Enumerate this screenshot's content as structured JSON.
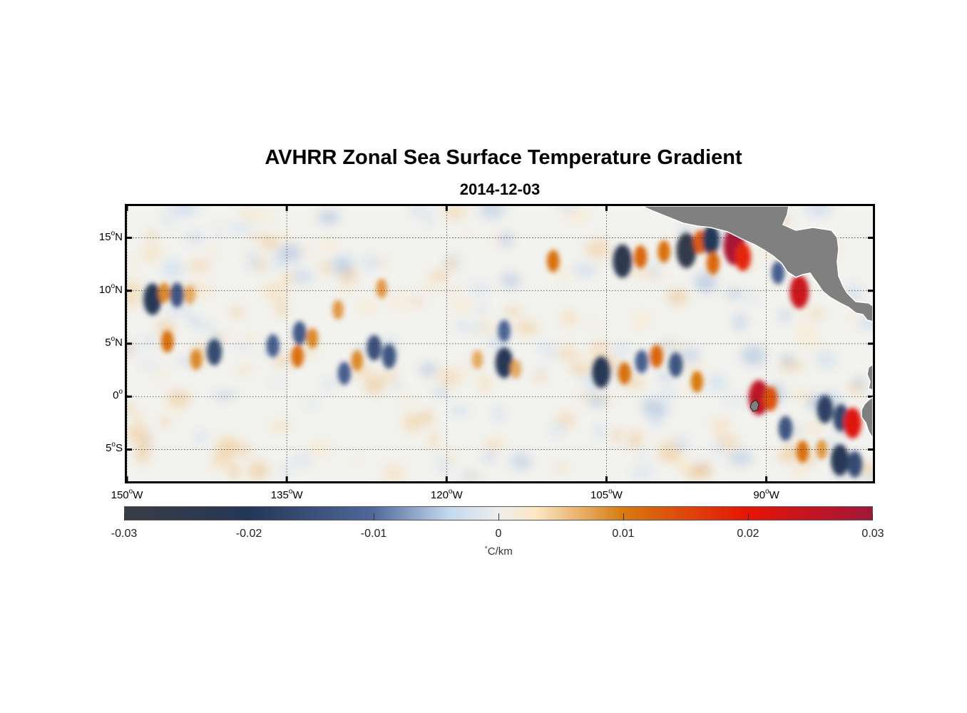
{
  "title": "AVHRR Zonal Sea Surface Temperature Gradient",
  "subtitle": "2014-12-03",
  "map": {
    "lon_range": [
      -150,
      -80
    ],
    "lat_range": [
      -8,
      18
    ],
    "land_color": "#808080",
    "ocean_base_color": "#eef0ee",
    "lat_ticks": [
      {
        "value": 15,
        "num": "15",
        "deg": "o",
        "hemi": "N"
      },
      {
        "value": 10,
        "num": "10",
        "deg": "o",
        "hemi": "N"
      },
      {
        "value": 5,
        "num": "5",
        "deg": "o",
        "hemi": "N"
      },
      {
        "value": 0,
        "num": "0",
        "deg": "o",
        "hemi": ""
      },
      {
        "value": -5,
        "num": "5",
        "deg": "o",
        "hemi": "S"
      }
    ],
    "lon_ticks": [
      {
        "value": -150,
        "num": "150",
        "deg": "o",
        "hemi": "W"
      },
      {
        "value": -135,
        "num": "135",
        "deg": "o",
        "hemi": "W"
      },
      {
        "value": -120,
        "num": "120",
        "deg": "o",
        "hemi": "W"
      },
      {
        "value": -105,
        "num": "105",
        "deg": "o",
        "hemi": "W"
      },
      {
        "value": -90,
        "num": "90",
        "deg": "o",
        "hemi": "W"
      }
    ],
    "features": [
      {
        "lon": -147.6,
        "lat": 9.2,
        "v": -0.022
      },
      {
        "lon": -146.5,
        "lat": 9.8,
        "v": 0.009
      },
      {
        "lon": -145.3,
        "lat": 9.6,
        "v": -0.014
      },
      {
        "lon": -144.1,
        "lat": 9.6,
        "v": 0.007
      },
      {
        "lon": -146.2,
        "lat": 5.2,
        "v": 0.011
      },
      {
        "lon": -143.5,
        "lat": 3.5,
        "v": 0.009
      },
      {
        "lon": -141.8,
        "lat": 4.2,
        "v": -0.016
      },
      {
        "lon": -136.3,
        "lat": 4.8,
        "v": -0.012
      },
      {
        "lon": -134.0,
        "lat": 3.8,
        "v": 0.011
      },
      {
        "lon": -132.6,
        "lat": 5.5,
        "v": 0.009
      },
      {
        "lon": -133.8,
        "lat": 6.0,
        "v": -0.013
      },
      {
        "lon": -130.2,
        "lat": 8.2,
        "v": 0.008
      },
      {
        "lon": -129.6,
        "lat": 2.2,
        "v": -0.012
      },
      {
        "lon": -128.4,
        "lat": 3.4,
        "v": 0.009
      },
      {
        "lon": -126.8,
        "lat": 4.6,
        "v": -0.015
      },
      {
        "lon": -125.4,
        "lat": 3.8,
        "v": -0.014
      },
      {
        "lon": -126.1,
        "lat": 10.2,
        "v": 0.008
      },
      {
        "lon": -117.1,
        "lat": 3.5,
        "v": 0.007
      },
      {
        "lon": -114.6,
        "lat": 6.2,
        "v": -0.011
      },
      {
        "lon": -114.6,
        "lat": 3.2,
        "v": -0.021
      },
      {
        "lon": -113.5,
        "lat": 2.6,
        "v": 0.007
      },
      {
        "lon": -110.0,
        "lat": 12.8,
        "v": 0.011
      },
      {
        "lon": -105.5,
        "lat": 2.3,
        "v": -0.022
      },
      {
        "lon": -103.3,
        "lat": 2.2,
        "v": 0.011
      },
      {
        "lon": -101.7,
        "lat": 3.3,
        "v": -0.012
      },
      {
        "lon": -100.3,
        "lat": 3.8,
        "v": 0.012
      },
      {
        "lon": -98.5,
        "lat": 3.0,
        "v": -0.014
      },
      {
        "lon": -96.5,
        "lat": 1.4,
        "v": 0.01
      },
      {
        "lon": -103.5,
        "lat": 12.8,
        "v": -0.024
      },
      {
        "lon": -101.8,
        "lat": 13.2,
        "v": 0.012
      },
      {
        "lon": -99.6,
        "lat": 13.7,
        "v": 0.011
      },
      {
        "lon": -97.5,
        "lat": 13.8,
        "v": -0.026
      },
      {
        "lon": -96.2,
        "lat": 14.6,
        "v": 0.013
      },
      {
        "lon": -95.2,
        "lat": 14.8,
        "v": -0.02
      },
      {
        "lon": -95.0,
        "lat": 12.6,
        "v": 0.012
      },
      {
        "lon": -93.0,
        "lat": 14.2,
        "v": 0.029
      },
      {
        "lon": -92.2,
        "lat": 13.2,
        "v": 0.018
      },
      {
        "lon": -88.9,
        "lat": 11.7,
        "v": -0.012
      },
      {
        "lon": -86.9,
        "lat": 9.9,
        "v": 0.024
      },
      {
        "lon": -90.7,
        "lat": -0.1,
        "v": 0.026
      },
      {
        "lon": -89.6,
        "lat": -0.2,
        "v": 0.014
      },
      {
        "lon": -88.2,
        "lat": -3.0,
        "v": -0.014
      },
      {
        "lon": -86.6,
        "lat": -5.2,
        "v": 0.011
      },
      {
        "lon": -84.5,
        "lat": -1.2,
        "v": -0.018
      },
      {
        "lon": -83.0,
        "lat": -2.0,
        "v": -0.017
      },
      {
        "lon": -81.9,
        "lat": -2.5,
        "v": 0.021
      },
      {
        "lon": -83.1,
        "lat": -6.0,
        "v": -0.022
      },
      {
        "lon": -84.8,
        "lat": -5.0,
        "v": 0.008
      },
      {
        "lon": -81.7,
        "lat": -6.4,
        "v": -0.016
      }
    ]
  },
  "colorbar": {
    "min": -0.03,
    "max": 0.03,
    "unit_deg": "°",
    "unit_text": "C/km",
    "ticks": [
      {
        "value": -0.03,
        "label": "-0.03"
      },
      {
        "value": -0.02,
        "label": "-0.02"
      },
      {
        "value": -0.01,
        "label": "-0.01"
      },
      {
        "value": 0,
        "label": "0"
      },
      {
        "value": 0.01,
        "label": "0.01"
      },
      {
        "value": 0.02,
        "label": "0.02"
      },
      {
        "value": 0.03,
        "label": "0.03"
      }
    ],
    "stops": [
      {
        "v": -0.03,
        "color": "#3a3c44"
      },
      {
        "v": -0.02,
        "color": "#243758"
      },
      {
        "v": -0.01,
        "color": "#50699a"
      },
      {
        "v": -0.004,
        "color": "#c4d8f0"
      },
      {
        "v": 0.0,
        "color": "#edefec"
      },
      {
        "v": 0.003,
        "color": "#fbe7c5"
      },
      {
        "v": 0.01,
        "color": "#d77a10"
      },
      {
        "v": 0.02,
        "color": "#e61405"
      },
      {
        "v": 0.03,
        "color": "#a1163a"
      }
    ]
  }
}
